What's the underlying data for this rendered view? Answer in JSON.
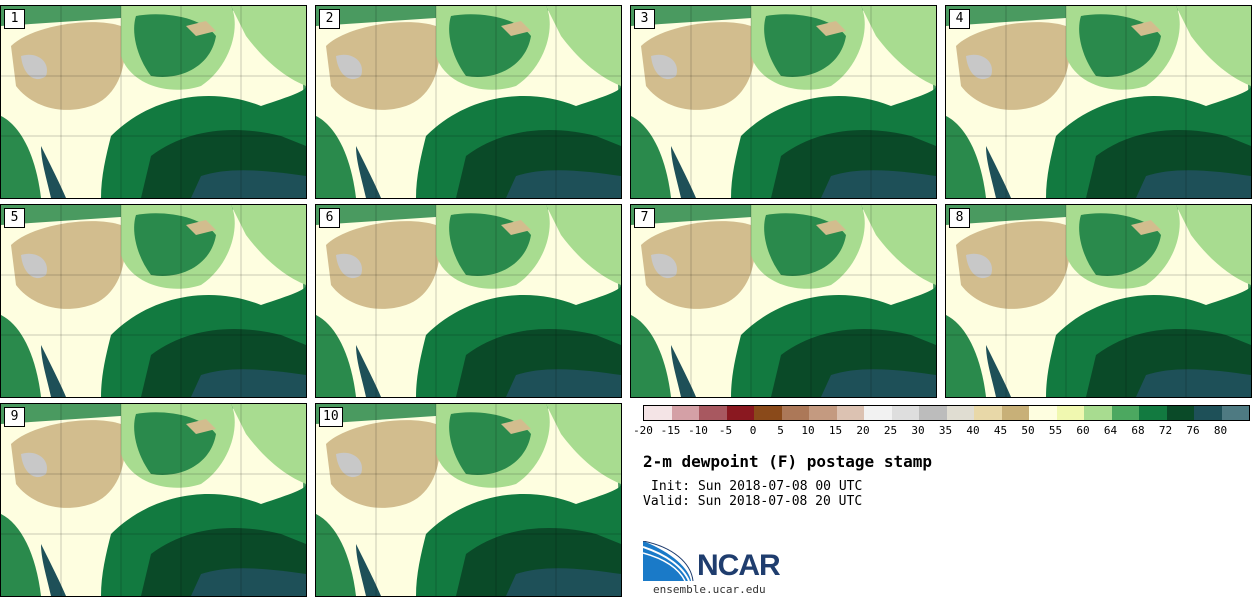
{
  "panels": [
    {
      "label": "1"
    },
    {
      "label": "2"
    },
    {
      "label": "3"
    },
    {
      "label": "4"
    },
    {
      "label": "5"
    },
    {
      "label": "6"
    },
    {
      "label": "7"
    },
    {
      "label": "8"
    },
    {
      "label": "9"
    },
    {
      "label": "10"
    }
  ],
  "colorbar": {
    "colors": [
      "#f4e4e6",
      "#d4a0a6",
      "#a85860",
      "#8a1820",
      "#8a4a1a",
      "#ac7858",
      "#c49a80",
      "#dcc2b2",
      "#f2f2f2",
      "#dedede",
      "#bcbcbc",
      "#e0ddd2",
      "#e8d8a8",
      "#c8b078",
      "#fefee0",
      "#f0f8b0",
      "#a8dc90",
      "#4ca860",
      "#127a40",
      "#0a4a28",
      "#1e5058",
      "#4e7a82"
    ],
    "ticks": [
      "-20",
      "-15",
      "-10",
      "-5",
      "0",
      "5",
      "10",
      "15",
      "20",
      "25",
      "30",
      "35",
      "40",
      "45",
      "50",
      "55",
      "60",
      "64",
      "68",
      "72",
      "76",
      "80"
    ]
  },
  "title": "2-m dewpoint (F) postage stamp",
  "init": "Init: Sun 2018-07-08 00 UTC",
  "valid": "Valid: Sun 2018-07-08 20 UTC",
  "logo": {
    "text": "NCAR",
    "brand_color": "#1f3d6e",
    "accent_color": "#1a7ac8"
  },
  "site": "ensemble.ucar.edu"
}
